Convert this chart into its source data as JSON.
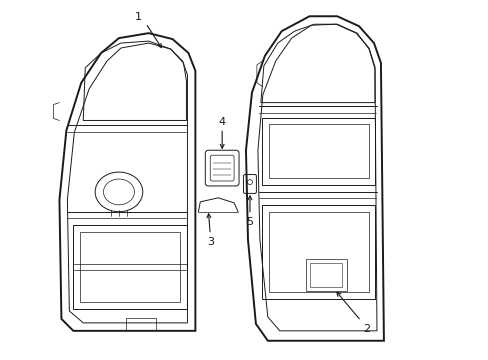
{
  "background_color": "#ffffff",
  "line_color": "#1a1a1a",
  "lw_outer": 1.4,
  "lw_inner": 0.7,
  "lw_thin": 0.5
}
